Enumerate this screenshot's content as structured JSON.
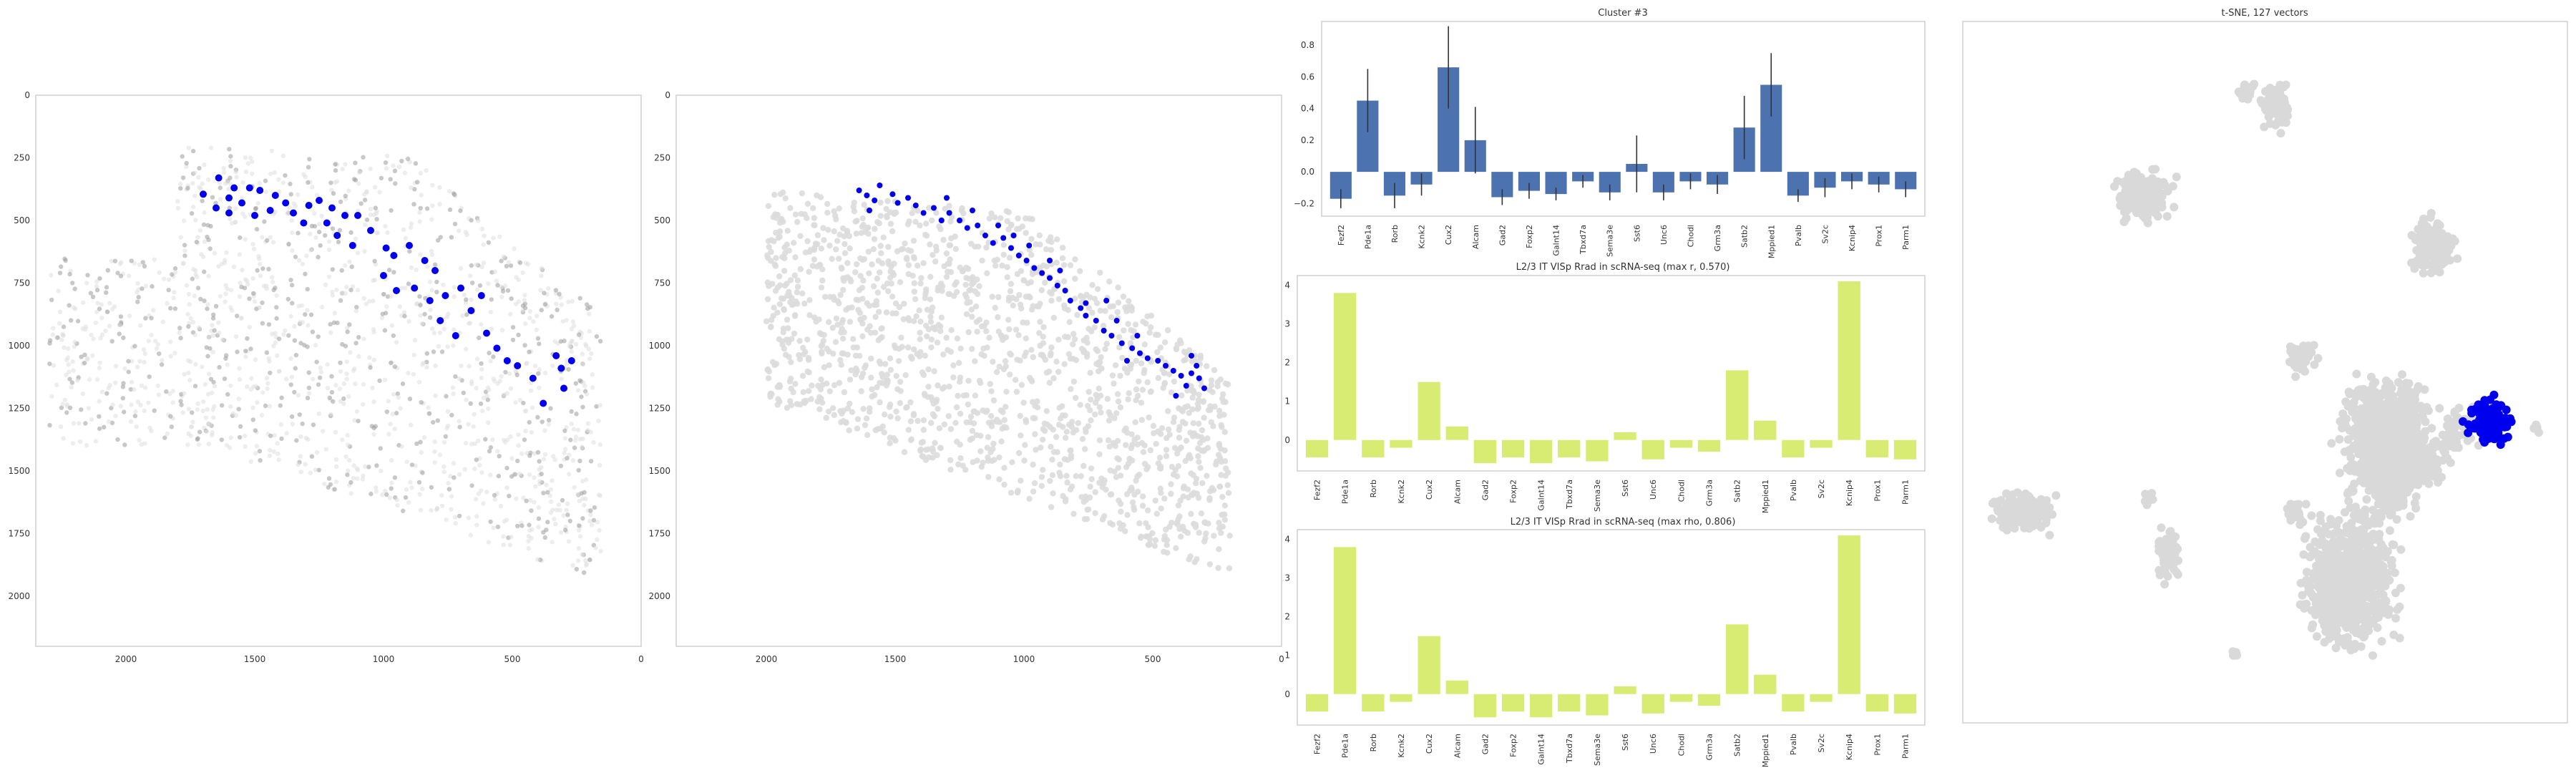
{
  "figure": {
    "colors": {
      "highlight": "#0000ee",
      "bg_dot": "#d9d9d9",
      "bar": "#4c72b0",
      "corr": "#d8eb73",
      "frame": "#cfcfcf",
      "text": "#333333"
    }
  },
  "chart_data": [
    {
      "type": "scatter",
      "title": "",
      "x_ticks": [
        "2000",
        "1500",
        "1000",
        "500",
        "0"
      ],
      "y_ticks": [
        "0",
        "250",
        "500",
        "750",
        "1000",
        "1250",
        "1500",
        "1750",
        "2000"
      ],
      "xlim": [
        2350,
        0
      ],
      "ylim": [
        2200,
        0
      ],
      "highlight_points": [
        [
          1640,
          330
        ],
        [
          1700,
          395
        ],
        [
          1580,
          370
        ],
        [
          1520,
          370
        ],
        [
          1600,
          410
        ],
        [
          1480,
          380
        ],
        [
          1550,
          430
        ],
        [
          1650,
          450
        ],
        [
          1420,
          400
        ],
        [
          1380,
          430
        ],
        [
          1600,
          470
        ],
        [
          1500,
          480
        ],
        [
          1440,
          460
        ],
        [
          1350,
          470
        ],
        [
          1290,
          440
        ],
        [
          1250,
          420
        ],
        [
          1200,
          450
        ],
        [
          1310,
          510
        ],
        [
          1220,
          510
        ],
        [
          1150,
          480
        ],
        [
          1100,
          480
        ],
        [
          1180,
          560
        ],
        [
          1120,
          600
        ],
        [
          1050,
          540
        ],
        [
          990,
          610
        ],
        [
          960,
          640
        ],
        [
          900,
          600
        ],
        [
          840,
          660
        ],
        [
          800,
          700
        ],
        [
          1000,
          720
        ],
        [
          950,
          780
        ],
        [
          880,
          770
        ],
        [
          820,
          820
        ],
        [
          760,
          800
        ],
        [
          700,
          770
        ],
        [
          660,
          860
        ],
        [
          620,
          800
        ],
        [
          780,
          900
        ],
        [
          720,
          960
        ],
        [
          600,
          950
        ],
        [
          560,
          1010
        ],
        [
          520,
          1060
        ],
        [
          480,
          1080
        ],
        [
          330,
          1040
        ],
        [
          310,
          1090
        ],
        [
          270,
          1060
        ],
        [
          300,
          1170
        ],
        [
          380,
          1230
        ],
        [
          420,
          1130
        ]
      ]
    },
    {
      "type": "scatter",
      "title": "",
      "x_ticks": [
        "2000",
        "1500",
        "1000",
        "500",
        "0"
      ],
      "y_ticks": [
        "0",
        "250",
        "500",
        "750",
        "1000",
        "1250",
        "1500",
        "1750",
        "2000"
      ],
      "xlim": [
        2350,
        0
      ],
      "ylim": [
        2200,
        0
      ],
      "highlight_points": [
        [
          1640,
          380
        ],
        [
          1610,
          400
        ],
        [
          1580,
          420
        ],
        [
          1560,
          360
        ],
        [
          1510,
          395
        ],
        [
          1490,
          430
        ],
        [
          1450,
          410
        ],
        [
          1420,
          440
        ],
        [
          1390,
          470
        ],
        [
          1350,
          450
        ],
        [
          1320,
          500
        ],
        [
          1290,
          470
        ],
        [
          1250,
          500
        ],
        [
          1220,
          530
        ],
        [
          1180,
          520
        ],
        [
          1150,
          560
        ],
        [
          1120,
          590
        ],
        [
          1080,
          570
        ],
        [
          1050,
          610
        ],
        [
          1020,
          640
        ],
        [
          990,
          660
        ],
        [
          960,
          690
        ],
        [
          930,
          710
        ],
        [
          900,
          730
        ],
        [
          870,
          760
        ],
        [
          840,
          780
        ],
        [
          820,
          820
        ],
        [
          780,
          850
        ],
        [
          760,
          880
        ],
        [
          720,
          900
        ],
        [
          690,
          940
        ],
        [
          660,
          960
        ],
        [
          620,
          990
        ],
        [
          580,
          1010
        ],
        [
          550,
          1030
        ],
        [
          520,
          1050
        ],
        [
          480,
          1060
        ],
        [
          450,
          1080
        ],
        [
          420,
          1100
        ],
        [
          390,
          1120
        ],
        [
          350,
          1110
        ],
        [
          320,
          1130
        ],
        [
          300,
          1170
        ],
        [
          350,
          1040
        ],
        [
          680,
          820
        ],
        [
          760,
          830
        ],
        [
          860,
          700
        ],
        [
          1100,
          520
        ],
        [
          1300,
          410
        ],
        [
          1600,
          460
        ],
        [
          1200,
          460
        ],
        [
          980,
          600
        ],
        [
          1040,
          560
        ],
        [
          900,
          660
        ],
        [
          640,
          900
        ],
        [
          560,
          960
        ],
        [
          370,
          1160
        ],
        [
          330,
          1080
        ],
        [
          410,
          1200
        ],
        [
          600,
          1060
        ]
      ]
    },
    {
      "type": "bar",
      "title": "Cluster #3",
      "categories": [
        "Fezf2",
        "Pde1a",
        "Rorb",
        "Kcnk2",
        "Cux2",
        "Alcam",
        "Gad2",
        "Foxp2",
        "Galnt14",
        "Tbxd7a",
        "Sema3e",
        "Sst6",
        "Unc6",
        "Chodl",
        "Grm3a",
        "Satb2",
        "Mppied1",
        "Pvalb",
        "Sv2c",
        "Kcnip4",
        "Prox1",
        "Parm1"
      ],
      "values": [
        -0.17,
        0.45,
        -0.15,
        -0.08,
        0.66,
        0.2,
        -0.16,
        -0.12,
        -0.14,
        -0.06,
        -0.13,
        0.05,
        -0.13,
        -0.06,
        -0.08,
        0.28,
        0.55,
        -0.15,
        -0.1,
        -0.06,
        -0.08,
        -0.11
      ],
      "errors": [
        0.06,
        0.2,
        0.08,
        0.07,
        0.26,
        0.21,
        0.05,
        0.05,
        0.04,
        0.04,
        0.05,
        0.18,
        0.05,
        0.05,
        0.06,
        0.2,
        0.2,
        0.04,
        0.06,
        0.05,
        0.05,
        0.05
      ],
      "ylim": [
        -0.28,
        0.95
      ],
      "y_ticks": [
        -0.2,
        0.0,
        0.2,
        0.4,
        0.6,
        0.8
      ],
      "y_tick_labels": [
        "−0.2",
        "0.0",
        "0.2",
        "0.4",
        "0.6",
        "0.8"
      ],
      "grid": false
    },
    {
      "type": "bar",
      "title": "L2/3 IT VISp Rrad in scRNA-seq (max r, 0.570)",
      "categories": [
        "Fezf2",
        "Pde1a",
        "Rorb",
        "Kcnk2",
        "Cux2",
        "Alcam",
        "Gad2",
        "Foxp2",
        "Galnt14",
        "Tbxd7a",
        "Sema3e",
        "Sst6",
        "Unc6",
        "Chodl",
        "Grm3a",
        "Satb2",
        "Mppied1",
        "Pvalb",
        "Sv2c",
        "Kcnip4",
        "Prox1",
        "Parm1"
      ],
      "values": [
        -0.45,
        3.8,
        -0.45,
        -0.2,
        1.5,
        0.35,
        -0.6,
        -0.45,
        -0.6,
        -0.45,
        -0.55,
        0.2,
        -0.5,
        -0.2,
        -0.3,
        1.8,
        0.5,
        -0.45,
        -0.2,
        4.1,
        -0.45,
        -0.5
      ],
      "ylim": [
        -0.8,
        4.25
      ],
      "y_ticks": [
        0,
        1,
        2,
        3,
        4
      ],
      "y_tick_labels": [
        "0",
        "1",
        "2",
        "3",
        "4"
      ],
      "grid": false
    },
    {
      "type": "bar",
      "title": "L2/3 IT VISp Rrad in scRNA-seq (max rho, 0.806)",
      "categories": [
        "Fezf2",
        "Pde1a",
        "Rorb",
        "Kcnk2",
        "Cux2",
        "Alcam",
        "Gad2",
        "Foxp2",
        "Galnt14",
        "Tbxd7a",
        "Sema3e",
        "Sst6",
        "Unc6",
        "Chodl",
        "Grm3a",
        "Satb2",
        "Mppied1",
        "Pvalb",
        "Sv2c",
        "Kcnip4",
        "Prox1",
        "Parm1"
      ],
      "values": [
        -0.45,
        3.8,
        -0.45,
        -0.2,
        1.5,
        0.35,
        -0.6,
        -0.45,
        -0.6,
        -0.45,
        -0.55,
        0.2,
        -0.5,
        -0.2,
        -0.3,
        1.8,
        0.5,
        -0.45,
        -0.2,
        4.1,
        -0.45,
        -0.5
      ],
      "ylim": [
        -0.8,
        4.25
      ],
      "y_ticks": [
        0,
        1,
        2,
        3,
        4
      ],
      "y_tick_labels": [
        "0",
        "1",
        "2",
        "3",
        "4"
      ],
      "grid": false
    },
    {
      "type": "scatter",
      "title": "t-SNE, 127 vectors",
      "axes_visible": false,
      "grey_clusters": [
        [
          0.52,
          0.12,
          0.03,
          0.05
        ],
        [
          0.3,
          0.25,
          0.06,
          0.05
        ],
        [
          0.47,
          0.1,
          0.02,
          0.02
        ],
        [
          0.78,
          0.32,
          0.05,
          0.05
        ],
        [
          0.56,
          0.48,
          0.03,
          0.03
        ],
        [
          0.7,
          0.6,
          0.1,
          0.12
        ],
        [
          0.64,
          0.8,
          0.1,
          0.12
        ],
        [
          0.1,
          0.7,
          0.07,
          0.04
        ],
        [
          0.34,
          0.76,
          0.025,
          0.05
        ],
        [
          0.31,
          0.68,
          0.015,
          0.015
        ],
        [
          0.55,
          0.7,
          0.02,
          0.02
        ],
        [
          0.45,
          0.9,
          0.01,
          0.01
        ],
        [
          0.95,
          0.58,
          0.01,
          0.01
        ]
      ],
      "highlight_cluster": [
        0.87,
        0.57,
        0.045,
        0.04
      ]
    }
  ]
}
